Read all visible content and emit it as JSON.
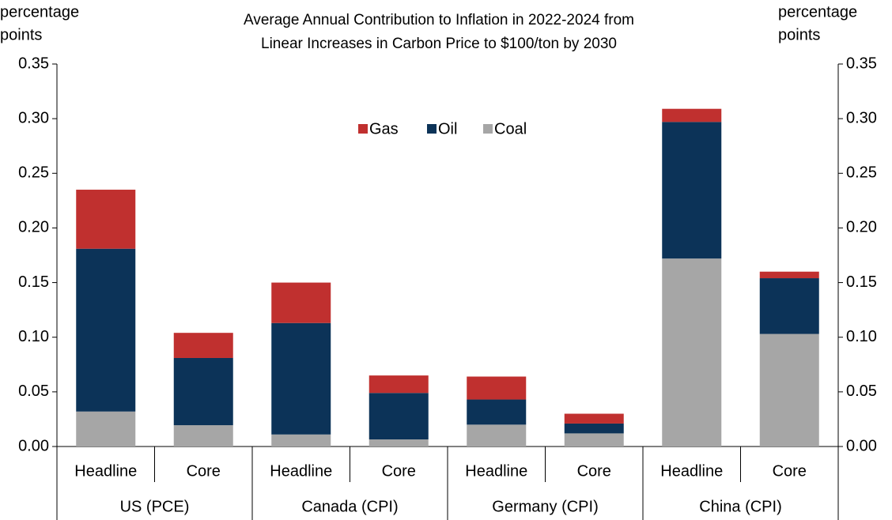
{
  "chart_data": {
    "type": "stacked_bar",
    "title": [
      "Average Annual Contribution to Inflation in 2022-2024 from",
      "Linear Increases in Carbon Price to $100/ton by 2030"
    ],
    "ylabel": [
      "percentage",
      "points"
    ],
    "y2label": [
      "percentage",
      "points"
    ],
    "categories": [
      "Headline",
      "Core",
      "Headline",
      "Core",
      "Headline",
      "Core",
      "Headline",
      "Core"
    ],
    "groups": [
      "US (PCE)",
      "Canada (CPI)",
      "Germany (CPI)",
      "China (CPI)"
    ],
    "series": [
      {
        "name": "Gas",
        "color": "#c0302f",
        "values": [
          0.054,
          0.023,
          0.037,
          0.016,
          0.021,
          0.009,
          0.012,
          0.006
        ]
      },
      {
        "name": "Oil",
        "color": "#0c3358",
        "values": [
          0.149,
          0.0615,
          0.102,
          0.0425,
          0.023,
          0.009,
          0.125,
          0.051
        ]
      },
      {
        "name": "Coal",
        "color": "#a6a6a6",
        "values": [
          0.032,
          0.0195,
          0.011,
          0.0065,
          0.02,
          0.012,
          0.172,
          0.103
        ]
      }
    ],
    "ylim": [
      0,
      0.35
    ],
    "yticks": [
      {
        "value": 0,
        "label": "0.00"
      },
      {
        "value": 0.05,
        "label": "0.05"
      },
      {
        "value": 0.1,
        "label": "0.10"
      },
      {
        "value": 0.15,
        "label": "0.15"
      },
      {
        "value": 0.2,
        "label": "0.20"
      },
      {
        "value": 0.25,
        "label": "0.25"
      },
      {
        "value": 0.3,
        "label": "0.30"
      },
      {
        "value": 0.35,
        "label": "0.35"
      }
    ],
    "y2lim": [
      0,
      0.35
    ],
    "y2ticks": [
      {
        "value": 0,
        "label": "0.00"
      },
      {
        "value": 0.05,
        "label": "0.05"
      },
      {
        "value": 0.1,
        "label": "0.10"
      },
      {
        "value": 0.15,
        "label": "0.15"
      },
      {
        "value": 0.2,
        "label": "0.20"
      },
      {
        "value": 0.25,
        "label": "0.25"
      },
      {
        "value": 0.3,
        "label": "0.30"
      },
      {
        "value": 0.35,
        "label": "0.35"
      }
    ],
    "legend": "top-center"
  }
}
